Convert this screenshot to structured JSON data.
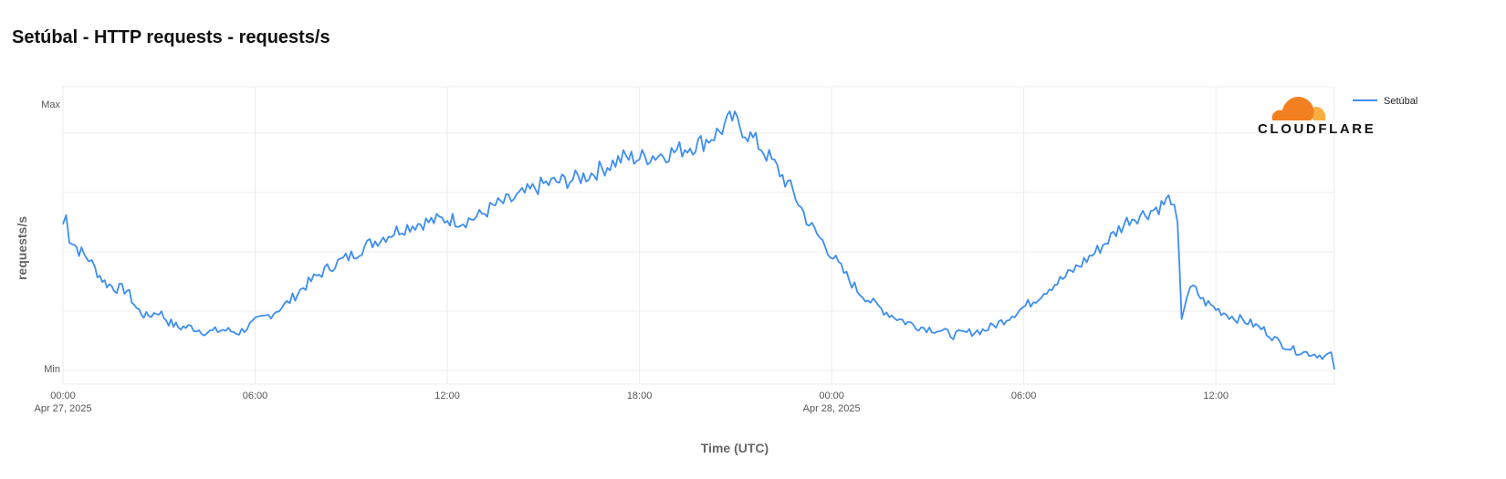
{
  "title": "Setúbal - HTTP requests - requests/s",
  "brand": {
    "logo_text": "CLOUDFLARE",
    "orange": "#F38020",
    "light_orange": "#FAAE40"
  },
  "chart_data": {
    "type": "line",
    "xlabel": "Time (UTC)",
    "ylabel": "requests/s",
    "y_ticks": [
      "Max",
      "Min"
    ],
    "x_ticks": [
      {
        "hours": 0,
        "time": "00:00",
        "date": "Apr 27, 2025"
      },
      {
        "hours": 6,
        "time": "06:00",
        "date": ""
      },
      {
        "hours": 12,
        "time": "12:00",
        "date": ""
      },
      {
        "hours": 18,
        "time": "18:00",
        "date": ""
      },
      {
        "hours": 24,
        "time": "00:00",
        "date": "Apr 28, 2025"
      },
      {
        "hours": 30,
        "time": "06:00",
        "date": ""
      },
      {
        "hours": 36,
        "time": "12:00",
        "date": ""
      }
    ],
    "xlim_hours": [
      0,
      39.7
    ],
    "ylim": [
      0,
      1
    ],
    "grid": true,
    "legend_position": "top-right",
    "series": [
      {
        "name": "Setúbal",
        "color": "#3d8ef0",
        "points": [
          [
            0,
            0.55
          ],
          [
            0.1,
            0.58
          ],
          [
            0.2,
            0.5
          ],
          [
            0.5,
            0.45
          ],
          [
            0.8,
            0.42
          ],
          [
            1.0,
            0.38
          ],
          [
            1.3,
            0.33
          ],
          [
            1.6,
            0.31
          ],
          [
            2.0,
            0.3
          ],
          [
            2.3,
            0.23
          ],
          [
            2.6,
            0.2
          ],
          [
            3.0,
            0.22
          ],
          [
            3.3,
            0.18
          ],
          [
            3.6,
            0.16
          ],
          [
            4.0,
            0.16
          ],
          [
            4.5,
            0.14
          ],
          [
            5.0,
            0.15
          ],
          [
            5.5,
            0.14
          ],
          [
            6.0,
            0.18
          ],
          [
            6.5,
            0.21
          ],
          [
            7.0,
            0.25
          ],
          [
            7.5,
            0.31
          ],
          [
            8.0,
            0.36
          ],
          [
            8.5,
            0.4
          ],
          [
            9.0,
            0.43
          ],
          [
            9.5,
            0.47
          ],
          [
            10.0,
            0.5
          ],
          [
            10.5,
            0.53
          ],
          [
            11.0,
            0.55
          ],
          [
            11.5,
            0.56
          ],
          [
            12.0,
            0.57
          ],
          [
            12.5,
            0.56
          ],
          [
            13.0,
            0.58
          ],
          [
            13.5,
            0.62
          ],
          [
            14.0,
            0.64
          ],
          [
            14.5,
            0.67
          ],
          [
            15.0,
            0.7
          ],
          [
            15.5,
            0.71
          ],
          [
            16.0,
            0.72
          ],
          [
            16.5,
            0.74
          ],
          [
            17.0,
            0.77
          ],
          [
            17.5,
            0.8
          ],
          [
            18.0,
            0.8
          ],
          [
            18.5,
            0.81
          ],
          [
            19.0,
            0.82
          ],
          [
            19.5,
            0.84
          ],
          [
            20.0,
            0.86
          ],
          [
            20.5,
            0.9
          ],
          [
            20.9,
            0.95
          ],
          [
            21.3,
            0.9
          ],
          [
            21.8,
            0.84
          ],
          [
            22.3,
            0.76
          ],
          [
            22.8,
            0.67
          ],
          [
            23.3,
            0.55
          ],
          [
            23.8,
            0.47
          ],
          [
            24.3,
            0.38
          ],
          [
            24.8,
            0.3
          ],
          [
            25.3,
            0.25
          ],
          [
            25.8,
            0.21
          ],
          [
            26.3,
            0.18
          ],
          [
            26.8,
            0.16
          ],
          [
            27.3,
            0.15
          ],
          [
            27.8,
            0.13
          ],
          [
            28.3,
            0.14
          ],
          [
            28.8,
            0.15
          ],
          [
            29.3,
            0.18
          ],
          [
            29.8,
            0.22
          ],
          [
            30.3,
            0.26
          ],
          [
            30.8,
            0.31
          ],
          [
            31.3,
            0.35
          ],
          [
            31.8,
            0.4
          ],
          [
            32.3,
            0.45
          ],
          [
            32.8,
            0.51
          ],
          [
            33.3,
            0.57
          ],
          [
            33.8,
            0.59
          ],
          [
            34.3,
            0.62
          ],
          [
            34.6,
            0.65
          ],
          [
            34.8,
            0.54
          ],
          [
            34.93,
            0.2
          ],
          [
            35.1,
            0.28
          ],
          [
            35.3,
            0.31
          ],
          [
            35.6,
            0.26
          ],
          [
            36.0,
            0.23
          ],
          [
            36.5,
            0.2
          ],
          [
            37.0,
            0.18
          ],
          [
            37.5,
            0.15
          ],
          [
            38.0,
            0.1
          ],
          [
            38.5,
            0.07
          ],
          [
            39.0,
            0.06
          ],
          [
            39.4,
            0.05
          ],
          [
            39.6,
            0.06
          ],
          [
            39.7,
            0.0
          ]
        ]
      }
    ]
  }
}
